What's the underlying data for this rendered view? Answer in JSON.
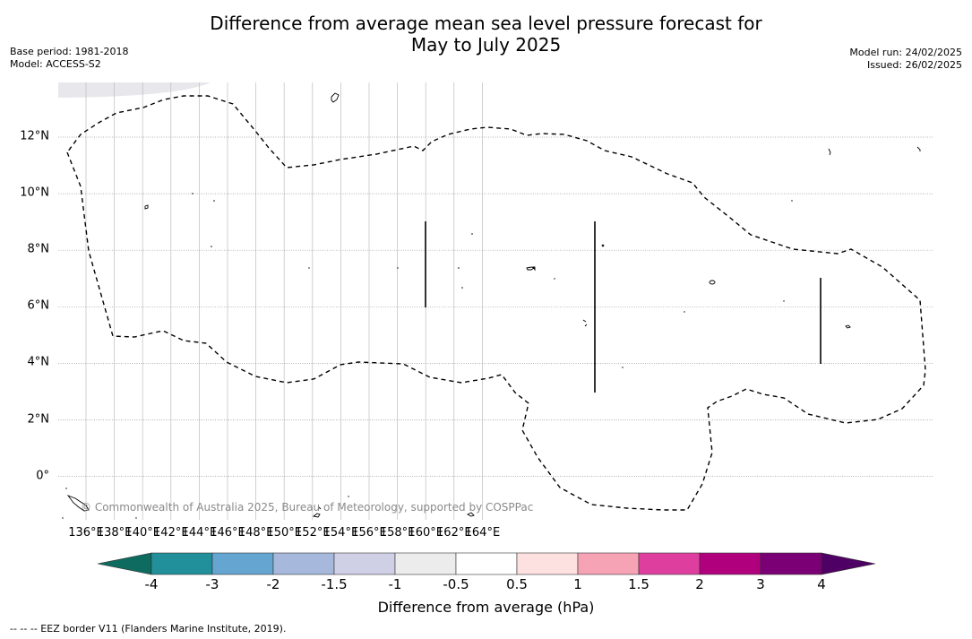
{
  "title_line1": "Difference from average mean sea level pressure forecast for",
  "title_line2": "May to July 2025",
  "meta": {
    "base_period": "Base period: 1981-2018",
    "model": "Model: ACCESS-S2",
    "model_run": "Model run: 24/02/2025",
    "issued": "Issued: 26/02/2025"
  },
  "map": {
    "lon_labels": [
      "136°E",
      "138°E",
      "140°E",
      "142°E",
      "144°E",
      "146°E",
      "148°E",
      "150°E",
      "152°E",
      "154°E",
      "156°E",
      "158°E",
      "160°E",
      "162°E",
      "164°E"
    ],
    "lat_labels": [
      "12°N",
      "10°N",
      "8°N",
      "6°N",
      "4°N",
      "2°N",
      "0°"
    ],
    "lon_range": [
      135,
      165.2
    ],
    "lat_range": [
      -1.5,
      14
    ],
    "copyright": "© Commonwealth of Australia 2025, Bureau of Meteorology, supported by COSPPac"
  },
  "colorbar": {
    "ticks": [
      "-4",
      "-3",
      "-2",
      "-1.5",
      "-1",
      "-0.5",
      "0.5",
      "1",
      "1.5",
      "2",
      "3",
      "4"
    ],
    "colors": [
      "#0d6b5f",
      "#22909a",
      "#64a6d1",
      "#a6b8dc",
      "#cfcfe6",
      "#ececec",
      "#ffffff",
      "#fde0e0",
      "#f7a3b6",
      "#de3f9e",
      "#b0007e",
      "#7b0075",
      "#4f0064"
    ],
    "label": "Difference from average (hPa)"
  },
  "footnote": "--  --  -- EEZ border V11 (Flanders Marine Institute, 2019)."
}
